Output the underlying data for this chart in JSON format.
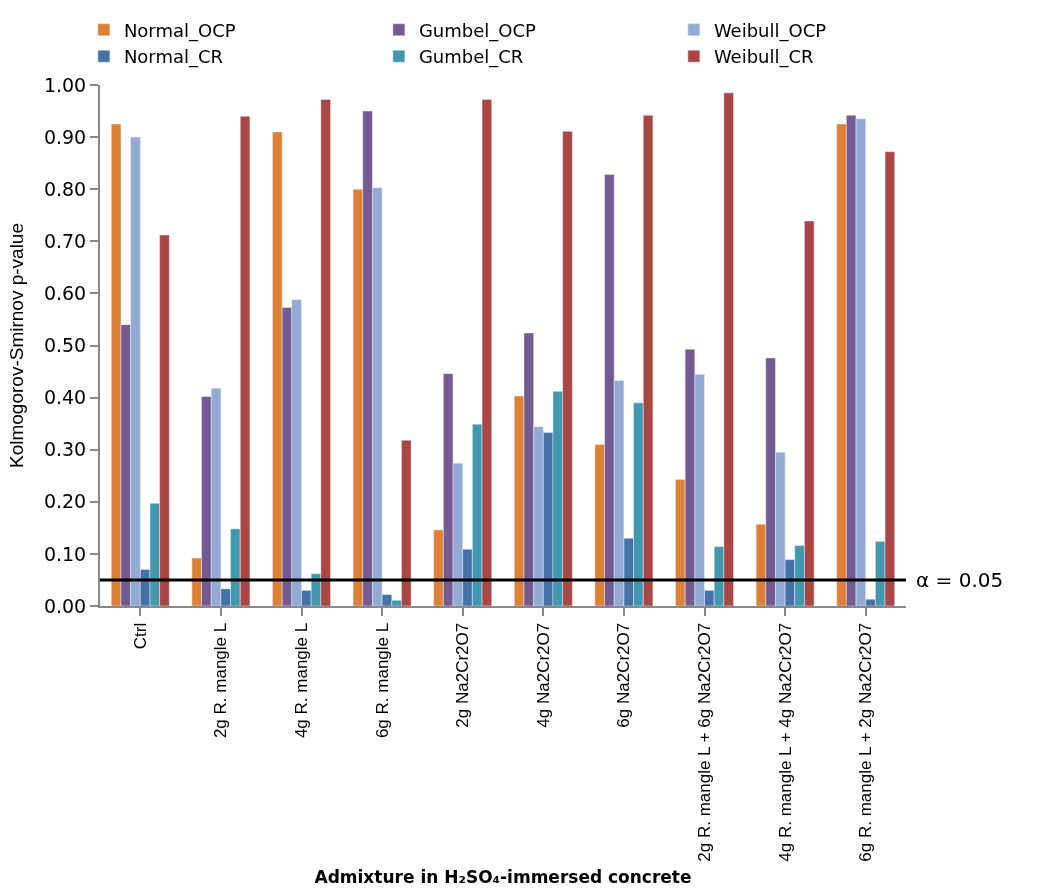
{
  "chart_data": {
    "type": "bar",
    "xlabel": "Admixture in H₂SO₄-immersed concrete",
    "ylabel": "Kolmogorov-Smirnov p-value",
    "categories": [
      "Ctrl",
      "2g R. mangle L",
      "4g R. mangle L",
      "6g R. mangle L",
      "2g Na2Cr2O7",
      "4g Na2Cr2O7",
      "6g Na2Cr2O7",
      "2g R. mangle L + 6g Na2Cr2O7",
      "4g R. mangle L + 4g Na2Cr2O7",
      "6g R. mangle L + 2g Na2Cr2O7"
    ],
    "series": [
      {
        "name": "Normal_OCP",
        "color": "#dd8136",
        "values": [
          0.925,
          0.092,
          0.91,
          0.8,
          0.146,
          0.403,
          0.31,
          0.243,
          0.157,
          0.925
        ]
      },
      {
        "name": "Gumbel_OCP",
        "color": "#735a92",
        "values": [
          0.54,
          0.402,
          0.573,
          0.95,
          0.446,
          0.524,
          0.828,
          0.493,
          0.476,
          0.942
        ]
      },
      {
        "name": "Weibull_OCP",
        "color": "#93abd4",
        "values": [
          0.9,
          0.418,
          0.588,
          0.803,
          0.274,
          0.344,
          0.433,
          0.445,
          0.295,
          0.935
        ]
      },
      {
        "name": "Normal_CR",
        "color": "#4572a7",
        "values": [
          0.07,
          0.033,
          0.03,
          0.022,
          0.109,
          0.333,
          0.13,
          0.03,
          0.089,
          0.013
        ]
      },
      {
        "name": "Gumbel_CR",
        "color": "#4198af",
        "values": [
          0.197,
          0.148,
          0.062,
          0.011,
          0.349,
          0.412,
          0.39,
          0.114,
          0.116,
          0.124
        ]
      },
      {
        "name": "Weibull_CR",
        "color": "#aa4643",
        "values": [
          0.712,
          0.94,
          0.972,
          0.318,
          0.972,
          0.911,
          0.942,
          0.985,
          0.739,
          0.872
        ]
      }
    ],
    "ylim": [
      0,
      1
    ],
    "yticks": [
      {
        "value": 0,
        "label": "0.00"
      },
      {
        "value": 0.1,
        "label": "0.10"
      },
      {
        "value": 0.2,
        "label": "0.20"
      },
      {
        "value": 0.3,
        "label": "0.30"
      },
      {
        "value": 0.4,
        "label": "0.40"
      },
      {
        "value": 0.5,
        "label": "0.50"
      },
      {
        "value": 0.6,
        "label": "0.60"
      },
      {
        "value": 0.7,
        "label": "0.70"
      },
      {
        "value": 0.8,
        "label": "0.80"
      },
      {
        "value": 0.9,
        "label": "0.90"
      },
      {
        "value": 1,
        "label": "1.00"
      }
    ],
    "ref_lines": [
      {
        "axis": "y",
        "value": 0.05,
        "label": "α = 0.05",
        "color": "#000000"
      }
    ],
    "legend": "top"
  }
}
